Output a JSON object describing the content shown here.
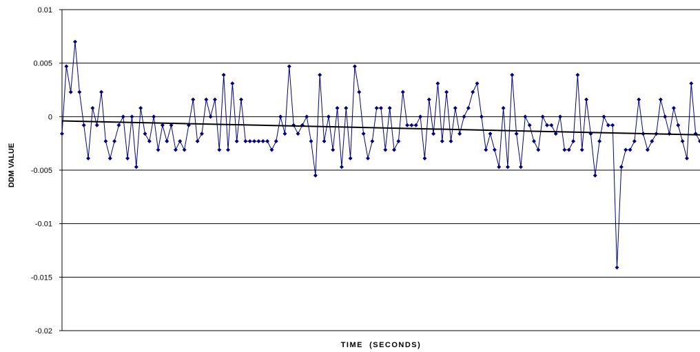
{
  "chart_data": {
    "type": "line",
    "title": "",
    "xlabel": "TIME  (SECONDS)",
    "ylabel": "DDM VALUE",
    "ylim": [
      -0.02,
      0.01
    ],
    "yticks": [
      0.01,
      0.005,
      0,
      -0.005,
      -0.01,
      -0.015,
      -0.02
    ],
    "ytick_labels": [
      "0.01",
      "0.005",
      "0",
      "-0.005",
      "-0.01",
      "-0.015",
      "-0.02"
    ],
    "grid": true,
    "legend": "none",
    "x_tick_labels": [],
    "series": [
      {
        "color": "#000080",
        "marker": "diamond",
        "values": [
          -0.0016,
          0.0047,
          0.0023,
          0.007,
          0.0023,
          -0.0008,
          -0.0039,
          0.0008,
          -0.0008,
          0.0023,
          -0.0023,
          -0.0039,
          -0.0023,
          -0.0008,
          0.0,
          -0.0039,
          0.0,
          -0.0047,
          0.0008,
          -0.0016,
          -0.0023,
          0.0,
          -0.0031,
          -0.0008,
          -0.0023,
          -0.0008,
          -0.0031,
          -0.0023,
          -0.0031,
          -0.0008,
          0.0016,
          -0.0023,
          -0.0016,
          0.0016,
          0.0,
          0.0016,
          -0.0031,
          0.0039,
          -0.0031,
          0.0031,
          -0.0023,
          0.0016,
          -0.0023,
          -0.0023,
          -0.0023,
          -0.0023,
          -0.0023,
          -0.0023,
          -0.0031,
          -0.0023,
          0.0,
          -0.0016,
          0.0047,
          -0.0008,
          -0.0016,
          -0.0008,
          0.0,
          -0.0023,
          -0.0055,
          0.0039,
          -0.0023,
          0.0,
          -0.0031,
          0.0008,
          -0.0047,
          0.0008,
          -0.0039,
          0.0047,
          0.0023,
          -0.0016,
          -0.0039,
          -0.0023,
          0.0008,
          0.0008,
          -0.0031,
          0.0008,
          -0.0031,
          -0.0023,
          0.0023,
          -0.0008,
          -0.0008,
          -0.0008,
          0.0,
          -0.0039,
          0.0016,
          -0.0016,
          0.0031,
          -0.0023,
          0.0023,
          -0.0023,
          0.0008,
          -0.0016,
          0.0,
          0.0008,
          0.0023,
          0.0031,
          0.0,
          -0.0031,
          -0.0016,
          -0.0031,
          -0.0047,
          0.0008,
          -0.0047,
          0.0039,
          -0.0016,
          -0.0047,
          0.0,
          -0.0008,
          -0.0023,
          -0.0031,
          0.0,
          -0.0008,
          -0.0008,
          -0.0016,
          0.0,
          -0.0031,
          -0.0031,
          -0.0023,
          0.0039,
          -0.0031,
          0.0016,
          -0.0016,
          -0.0055,
          -0.0023,
          0.0,
          -0.0008,
          -0.0008,
          -0.0141,
          -0.0047,
          -0.0031,
          -0.0031,
          -0.0023,
          0.0016,
          -0.0016,
          -0.0031,
          -0.0023,
          -0.0016,
          0.0016,
          0.0,
          -0.0016,
          0.0008,
          -0.0008,
          -0.0023,
          -0.0039,
          0.0031,
          -0.0016,
          -0.0023
        ]
      }
    ],
    "trendline": {
      "type": "linear",
      "color": "#000000",
      "start_value": -0.0004,
      "end_value": -0.0017
    }
  }
}
